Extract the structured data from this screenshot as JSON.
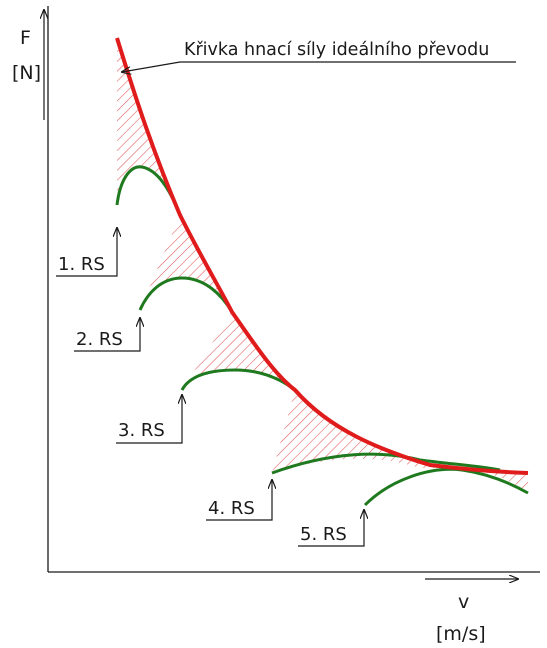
{
  "diagram": {
    "title_label": "Křivka hnací síly ideálního převodu",
    "y_axis": {
      "symbol": "F",
      "unit": "[N]"
    },
    "x_axis": {
      "symbol": "v",
      "unit": "[m/s]"
    },
    "gear_labels": [
      "1. RS",
      "2. RS",
      "3. RS",
      "4. RS",
      "5. RS"
    ],
    "colors": {
      "ideal_curve": "#e01b1b",
      "gear_curves": "#1f7a1f",
      "hatch": "#e05555",
      "lines": "#1a1a1a"
    }
  }
}
